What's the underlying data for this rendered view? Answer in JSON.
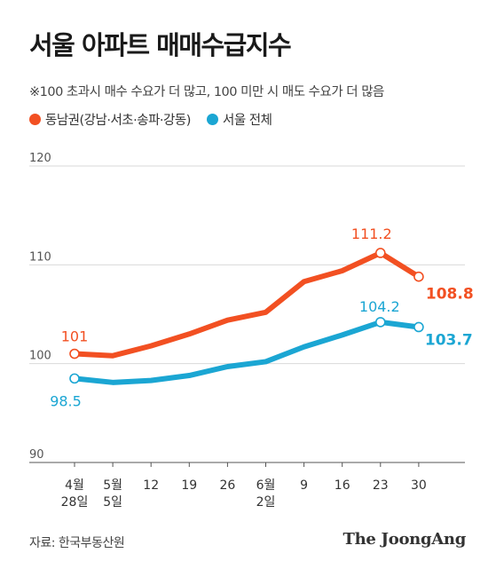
{
  "title": "서울 아파트 매매수급지수",
  "subtitle": "※100 초과시 매수 수요가 더 많고, 100 미만 시 매도 수요가 더 많음",
  "source": "자료: 한국부동산원",
  "brand": "The JoongAng",
  "colors": {
    "gangnam": "#f25022",
    "seoul": "#1ba6d3",
    "grid": "#d9d9d9",
    "axis": "#555555"
  },
  "chart_data": {
    "type": "line",
    "title": "서울 아파트 매매수급지수",
    "categories": [
      [
        "4월",
        "28일"
      ],
      [
        "5월",
        "5일"
      ],
      [
        "12"
      ],
      [
        "19"
      ],
      [
        "26"
      ],
      [
        "6월",
        "2일"
      ],
      [
        "9"
      ],
      [
        "16"
      ],
      [
        "23"
      ],
      [
        "30"
      ]
    ],
    "ylim": [
      90,
      120
    ],
    "yticks": [
      90,
      100,
      110,
      120
    ],
    "grid": true,
    "legend_position": "top-left",
    "series": [
      {
        "name": "동남권(강남·서초·송파·강동)",
        "color": "#f25022",
        "values": [
          101.0,
          100.8,
          101.8,
          103.0,
          104.4,
          105.2,
          108.3,
          109.4,
          111.2,
          108.8
        ],
        "labels": [
          {
            "index": 0,
            "text": "101"
          },
          {
            "index": 8,
            "text": "111.2"
          },
          {
            "index": 9,
            "text": "108.8"
          }
        ]
      },
      {
        "name": "서울 전체",
        "color": "#1ba6d3",
        "values": [
          98.5,
          98.1,
          98.3,
          98.8,
          99.7,
          100.2,
          101.7,
          102.9,
          104.2,
          103.7
        ],
        "labels": [
          {
            "index": 0,
            "text": "98.5"
          },
          {
            "index": 8,
            "text": "104.2"
          },
          {
            "index": 9,
            "text": "103.7"
          }
        ]
      }
    ]
  }
}
